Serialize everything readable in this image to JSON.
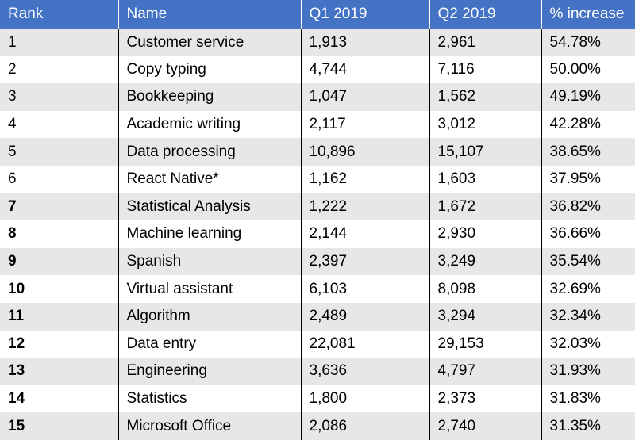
{
  "headers": [
    "Rank",
    "Name",
    "Q1 2019",
    "Q2 2019",
    "% increase"
  ],
  "rows": [
    {
      "rank": "1",
      "rank_bold": false,
      "name": "Customer service",
      "q1": "1,913",
      "q2": "2,961",
      "increase": "54.78%"
    },
    {
      "rank": "2",
      "rank_bold": false,
      "name": "Copy typing",
      "q1": "4,744",
      "q2": "7,116",
      "increase": "50.00%"
    },
    {
      "rank": "3",
      "rank_bold": false,
      "name": "Bookkeeping",
      "q1": "1,047",
      "q2": "1,562",
      "increase": "49.19%"
    },
    {
      "rank": "4",
      "rank_bold": false,
      "name": "Academic writing",
      "q1": "2,117",
      "q2": "3,012",
      "increase": "42.28%"
    },
    {
      "rank": "5",
      "rank_bold": false,
      "name": "Data processing",
      "q1": "10,896",
      "q2": "15,107",
      "increase": "38.65%"
    },
    {
      "rank": "6",
      "rank_bold": false,
      "name": "React Native*",
      "q1": "1,162",
      "q2": "1,603",
      "increase": "37.95%"
    },
    {
      "rank": "7",
      "rank_bold": true,
      "name": "Statistical Analysis",
      "q1": "1,222",
      "q2": "1,672",
      "increase": "36.82%"
    },
    {
      "rank": "8",
      "rank_bold": true,
      "name": "Machine learning",
      "q1": "2,144",
      "q2": "2,930",
      "increase": "36.66%"
    },
    {
      "rank": "9",
      "rank_bold": true,
      "name": "Spanish",
      "q1": "2,397",
      "q2": "3,249",
      "increase": "35.54%"
    },
    {
      "rank": "10",
      "rank_bold": true,
      "name": "Virtual assistant",
      "q1": "6,103",
      "q2": "8,098",
      "increase": "32.69%"
    },
    {
      "rank": "11",
      "rank_bold": true,
      "name": "Algorithm",
      "q1": "2,489",
      "q2": "3,294",
      "increase": "32.34%"
    },
    {
      "rank": "12",
      "rank_bold": true,
      "name": "Data entry",
      "q1": "22,081",
      "q2": "29,153",
      "increase": "32.03%"
    },
    {
      "rank": "13",
      "rank_bold": true,
      "name": "Engineering",
      "q1": "3,636",
      "q2": "4,797",
      "increase": "31.93%"
    },
    {
      "rank": "14",
      "rank_bold": true,
      "name": "Statistics",
      "q1": "1,800",
      "q2": "2,373",
      "increase": "31.83%"
    },
    {
      "rank": "15",
      "rank_bold": true,
      "name": "Microsoft Office",
      "q1": "2,086",
      "q2": "2,740",
      "increase": "31.35%"
    }
  ],
  "colors": {
    "header_bg": "#4472c4",
    "header_text": "#ffffff",
    "band_row": "#e7e7e7",
    "plain_row": "#ffffff"
  }
}
